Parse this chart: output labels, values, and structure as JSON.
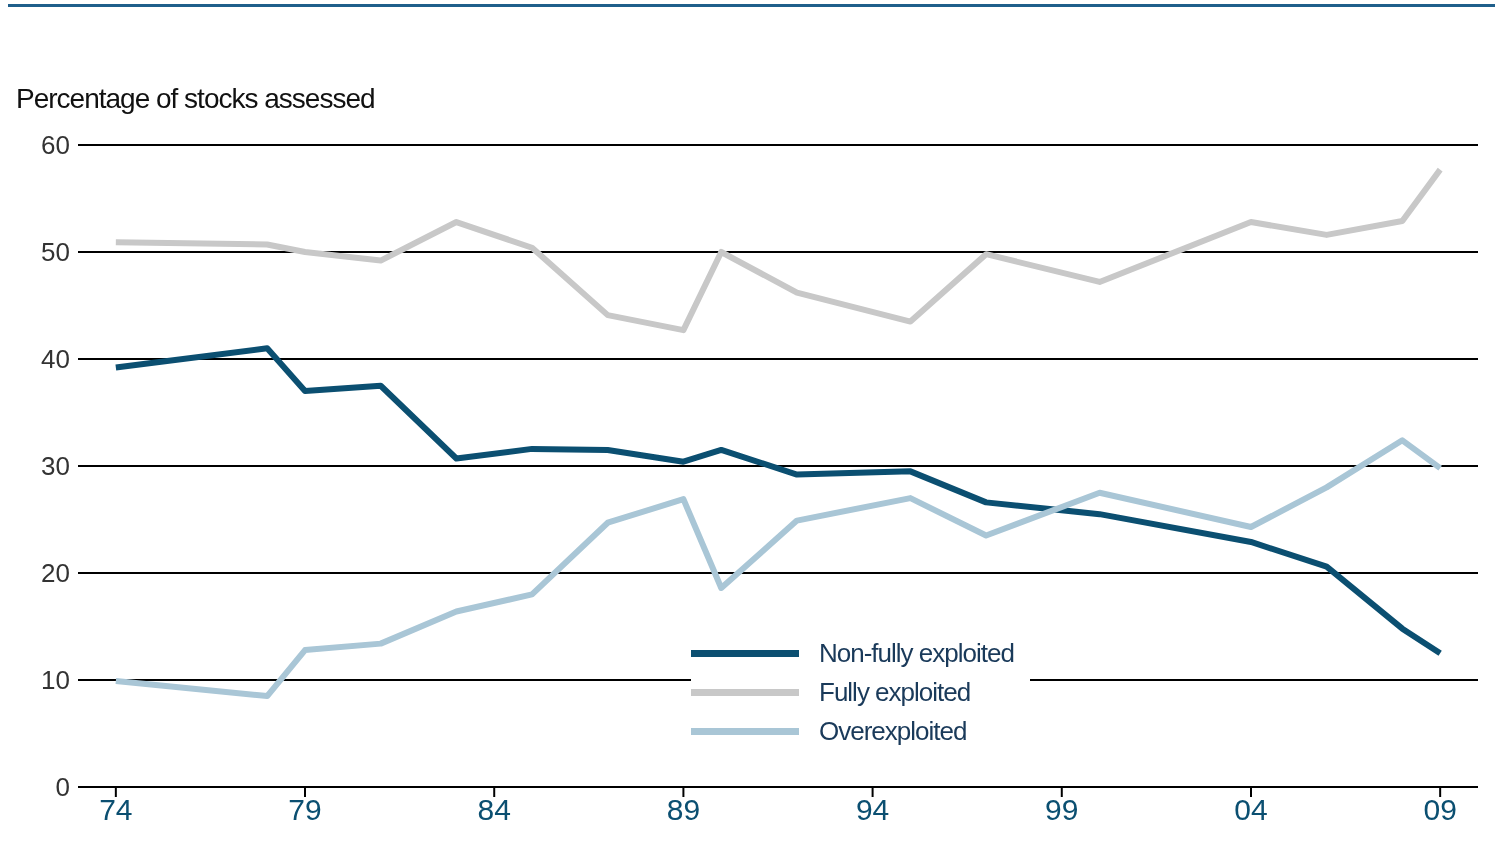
{
  "chart_data": {
    "type": "line",
    "ylabel": "Percentage of stocks assessed",
    "x": [
      1974,
      1978,
      1979,
      1981,
      1983,
      1985,
      1987,
      1989,
      1990,
      1992,
      1995,
      1997,
      2000,
      2004,
      2006,
      2008,
      2009
    ],
    "series": [
      {
        "name": "Non-fully exploited",
        "color": "#0b4f71",
        "values": [
          39.2,
          41.0,
          37.0,
          37.5,
          30.7,
          31.6,
          31.5,
          30.4,
          31.5,
          29.2,
          29.5,
          26.6,
          25.5,
          22.9,
          20.6,
          14.8,
          12.5
        ]
      },
      {
        "name": "Fully exploited",
        "color": "#c8c8c8",
        "values": [
          50.9,
          50.7,
          50.0,
          49.2,
          52.8,
          50.4,
          44.1,
          42.7,
          50.0,
          46.2,
          43.5,
          49.8,
          47.2,
          52.8,
          51.6,
          52.9,
          57.7
        ]
      },
      {
        "name": "Overexploited",
        "color": "#a9c6d6",
        "values": [
          9.9,
          8.5,
          12.8,
          13.4,
          16.4,
          18.0,
          24.7,
          26.9,
          18.6,
          24.9,
          27.0,
          23.5,
          27.5,
          24.3,
          28.0,
          32.4,
          29.8
        ]
      }
    ],
    "xlim": [
      1973,
      2010
    ],
    "xticks": [
      {
        "value": 1974,
        "label": "74"
      },
      {
        "value": 1979,
        "label": "79"
      },
      {
        "value": 1984,
        "label": "84"
      },
      {
        "value": 1989,
        "label": "89"
      },
      {
        "value": 1994,
        "label": "94"
      },
      {
        "value": 1999,
        "label": "99"
      },
      {
        "value": 2004,
        "label": "04"
      },
      {
        "value": 2009,
        "label": "09"
      }
    ],
    "ylim": [
      0,
      60
    ],
    "yticks": [
      0,
      10,
      20,
      30,
      40,
      50,
      60
    ],
    "grid": "y",
    "legend": "bottom"
  }
}
